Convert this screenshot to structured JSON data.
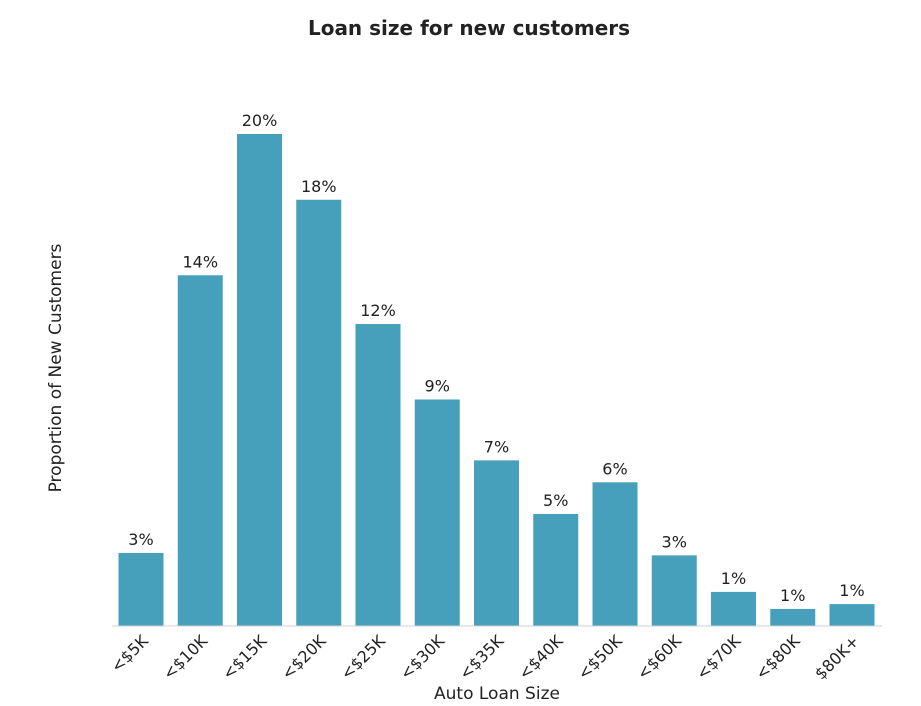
{
  "chart_data": {
    "type": "bar",
    "title": "Loan size for new customers",
    "xlabel": "Auto Loan Size",
    "ylabel": "Proportion of New Customers",
    "categories": [
      "<$5K",
      "<$10K",
      "<$15K",
      "<$20K",
      "<$25K",
      "<$30K",
      "<$35K",
      "<$40K",
      "<$50K",
      "<$60K",
      "<$70K",
      "<$80K",
      "$80K+"
    ],
    "values": [
      3.0,
      14.4,
      20.2,
      17.5,
      12.4,
      9.3,
      6.8,
      4.6,
      5.9,
      2.9,
      1.4,
      0.7,
      0.9
    ],
    "data_labels": [
      "3%",
      "14%",
      "20%",
      "18%",
      "12%",
      "9%",
      "7%",
      "5%",
      "6%",
      "3%",
      "1%",
      "1%",
      "1%"
    ],
    "ylim": [
      0,
      20.2
    ],
    "grid": false,
    "legend": "none",
    "bar_color": "#46a0bb",
    "axis_color": "#d0d0d0",
    "text_color": "#222222"
  }
}
